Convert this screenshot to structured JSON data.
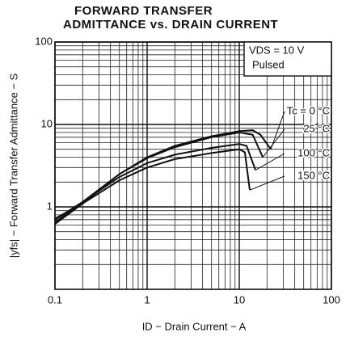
{
  "chart_data": {
    "type": "line",
    "title": [
      "FORWARD TRANSFER",
      "ADMITTANCE vs. DRAIN CURRENT"
    ],
    "x_label": "ID − Drain Current − A",
    "y_label": "|yfs| − Forward Transfer Admittance − S",
    "xlim": [
      0.1,
      100
    ],
    "ylim": [
      0.1,
      100
    ],
    "xticks": [
      0.1,
      1,
      10,
      100
    ],
    "yticks": [
      1,
      10,
      100
    ],
    "log_x": true,
    "log_y": true,
    "grid": true,
    "annotations": [
      "VDS = 10 V",
      "Pulsed"
    ],
    "series": [
      {
        "name": "Tc = 0 °C",
        "color": "#111111",
        "x": [
          0.1,
          0.2,
          0.5,
          1,
          2,
          5,
          10,
          14,
          17,
          22
        ],
        "values": [
          0.62,
          1.1,
          2.5,
          4,
          5.5,
          7.2,
          8.3,
          8.5,
          7.5,
          5
        ]
      },
      {
        "name": "25 °C",
        "color": "#111111",
        "x": [
          0.1,
          0.2,
          0.5,
          1,
          2,
          5,
          10,
          14,
          18
        ],
        "values": [
          0.65,
          1.15,
          2.5,
          3.9,
          5.3,
          7,
          8,
          7.5,
          4
        ]
      },
      {
        "name": "100 °C",
        "color": "#111111",
        "x": [
          0.1,
          0.2,
          0.5,
          1,
          2,
          5,
          10,
          12,
          15
        ],
        "values": [
          0.7,
          1.15,
          2.3,
          3.4,
          4.3,
          5.2,
          5.8,
          5.5,
          2.8
        ]
      },
      {
        "name": "150 °C",
        "color": "#111111",
        "x": [
          0.1,
          0.2,
          0.5,
          1,
          2,
          5,
          10,
          11.5,
          13
        ],
        "values": [
          0.72,
          1.1,
          2.1,
          3,
          3.8,
          4.5,
          5,
          4.6,
          1.6
        ]
      }
    ]
  }
}
